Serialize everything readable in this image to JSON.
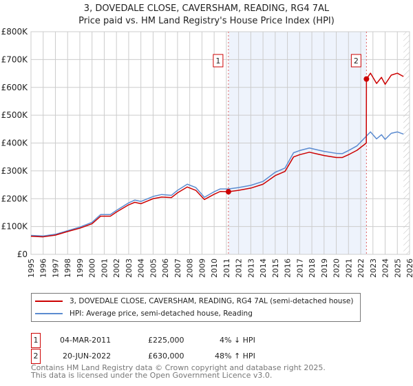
{
  "chart_data": {
    "type": "line",
    "title": "3, DOVEDALE CLOSE, CAVERSHAM, READING, RG4 7AL",
    "subtitle": "Price paid vs. HM Land Registry's House Price Index (HPI)",
    "xlim": [
      1995,
      2026
    ],
    "ylim": [
      0,
      800000
    ],
    "x_ticks": [
      "1995",
      "1996",
      "1997",
      "1998",
      "1999",
      "2000",
      "2001",
      "2002",
      "2003",
      "2004",
      "2005",
      "2006",
      "2007",
      "2008",
      "2009",
      "2010",
      "2011",
      "2012",
      "2013",
      "2014",
      "2015",
      "2016",
      "2017",
      "2018",
      "2019",
      "2020",
      "2021",
      "2022",
      "2023",
      "2024",
      "2025",
      "2026"
    ],
    "y_ticks": [
      {
        "v": 0,
        "label": "£0"
      },
      {
        "v": 100000,
        "label": "£100K"
      },
      {
        "v": 200000,
        "label": "£200K"
      },
      {
        "v": 300000,
        "label": "£300K"
      },
      {
        "v": 400000,
        "label": "£400K"
      },
      {
        "v": 500000,
        "label": "£500K"
      },
      {
        "v": 600000,
        "label": "£600K"
      },
      {
        "v": 700000,
        "label": "£700K"
      },
      {
        "v": 800000,
        "label": "£800K"
      }
    ],
    "grid": true,
    "shaded_range": [
      2011.17,
      2022.47
    ],
    "hatched_from": 2025.5,
    "series": [
      {
        "name": "3, DOVEDALE CLOSE, CAVERSHAM, READING, RG4 7AL (semi-detached house)",
        "color": "#cc0000",
        "x": [
          1995,
          1996,
          1997,
          1998,
          1999,
          2000,
          2000.7,
          2001.5,
          2002,
          2003,
          2003.5,
          2004,
          2005,
          2005.7,
          2006.5,
          2007,
          2007.8,
          2008.5,
          2009.2,
          2010,
          2010.5,
          2011.17,
          2012,
          2013,
          2014,
          2015,
          2015.8,
          2016.5,
          2017,
          2017.8,
          2018.5,
          2019,
          2020,
          2020.5,
          2021,
          2021.7,
          2022.46,
          2022.47,
          2022.8,
          2023.3,
          2023.7,
          2024,
          2024.5,
          2025,
          2025.5
        ],
        "y": [
          65000,
          63000,
          69000,
          82000,
          94000,
          110000,
          137000,
          137000,
          152000,
          178000,
          187000,
          182000,
          200000,
          206000,
          204000,
          221000,
          242000,
          230000,
          197000,
          216000,
          226000,
          225000,
          230000,
          238000,
          252000,
          283000,
          298000,
          350000,
          358000,
          367000,
          360000,
          355000,
          348000,
          348000,
          358000,
          374000,
          400000,
          630000,
          651000,
          614000,
          636000,
          611000,
          644000,
          651000,
          639000
        ]
      },
      {
        "name": "HPI: Average price, semi-detached house, Reading",
        "color": "#5b8bd0",
        "x": [
          1995,
          1996,
          1997,
          1998,
          1999,
          2000,
          2000.7,
          2001.5,
          2002,
          2003,
          2003.5,
          2004,
          2005,
          2005.7,
          2006.5,
          2007,
          2007.8,
          2008.5,
          2009.2,
          2010,
          2010.5,
          2011.17,
          2012,
          2013,
          2014,
          2015,
          2015.8,
          2016.5,
          2017,
          2017.8,
          2018.5,
          2019,
          2020,
          2020.5,
          2021,
          2021.7,
          2022.47,
          2022.8,
          2023.3,
          2023.7,
          2024,
          2024.5,
          2025,
          2025.5
        ],
        "y": [
          68000,
          66000,
          72000,
          85000,
          98000,
          115000,
          143000,
          143000,
          158000,
          185000,
          195000,
          190000,
          208000,
          215000,
          212000,
          230000,
          252000,
          240000,
          205000,
          225000,
          235000,
          235000,
          240000,
          248000,
          262000,
          295000,
          310000,
          365000,
          373000,
          382000,
          375000,
          370000,
          363000,
          362000,
          373000,
          390000,
          425000,
          440000,
          415000,
          430000,
          413000,
          435000,
          440000,
          432000
        ]
      }
    ],
    "sales": [
      {
        "id": "1",
        "x": 2011.17,
        "y": 225000,
        "date": "04-MAR-2011",
        "price": "£225,000",
        "delta": "4% ↓ HPI"
      },
      {
        "id": "2",
        "x": 2022.47,
        "y": 630000,
        "date": "20-JUN-2022",
        "price": "£630,000",
        "delta": "48% ↑ HPI"
      }
    ]
  },
  "legend": [
    "3, DOVEDALE CLOSE, CAVERSHAM, READING, RG4 7AL (semi-detached house)",
    "HPI: Average price, semi-detached house, Reading"
  ],
  "footer": [
    "Contains HM Land Registry data © Crown copyright and database right 2025.",
    "This data is licensed under the Open Government Licence v3.0."
  ]
}
